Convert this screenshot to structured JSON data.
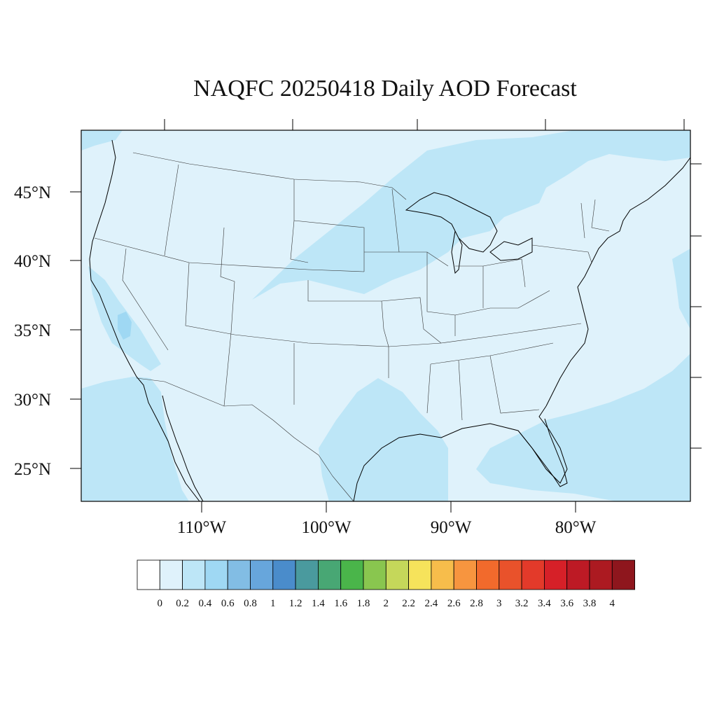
{
  "title": "NAQFC 20250418 Daily AOD Forecast",
  "map": {
    "lat_labels": [
      "45°N",
      "40°N",
      "35°N",
      "30°N",
      "25°N"
    ],
    "lon_labels": [
      "110°W",
      "100°W",
      "90°W",
      "80°W"
    ],
    "colors": {
      "background_field": "#dff2fb",
      "elevated_field": "#bde6f7",
      "higher_field": "#9fd8f3",
      "coastline": "#000000",
      "state_border": "#444444"
    }
  },
  "colorbar": {
    "labels": [
      "0",
      "0.2",
      "0.4",
      "0.6",
      "0.8",
      "1",
      "1.2",
      "1.4",
      "1.6",
      "1.8",
      "2",
      "2.2",
      "2.4",
      "2.6",
      "2.8",
      "3",
      "3.2",
      "3.4",
      "3.6",
      "3.8",
      "4"
    ],
    "colors": [
      "#ffffff",
      "#dff2fb",
      "#bde6f7",
      "#9fd8f3",
      "#82bde4",
      "#67a6dc",
      "#4a8ccb",
      "#4a9a9e",
      "#48a774",
      "#4ab54a",
      "#89c64f",
      "#c5d75a",
      "#f6e35b",
      "#f7bd4b",
      "#f7953f",
      "#f26a2c",
      "#e9522b",
      "#e33a2a",
      "#d62028",
      "#bd1a25",
      "#ac1a21",
      "#8e161d"
    ]
  }
}
